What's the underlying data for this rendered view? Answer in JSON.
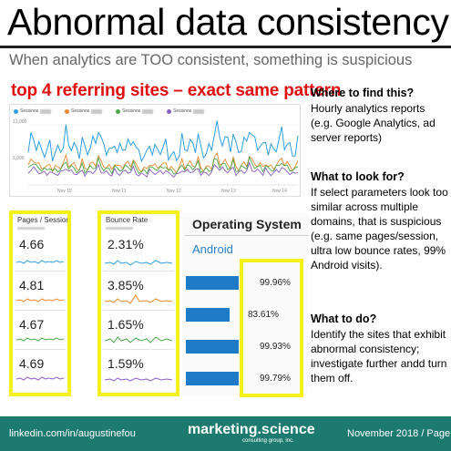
{
  "title": "Abnormal data consistency",
  "subtitle": "When analytics are TOO consistent, something is suspicious",
  "figure_heading": "top 4 referring sites – exact same pattern",
  "chart": {
    "legend": [
      "Sessions",
      "Sessions",
      "Sessions",
      "Sessions"
    ],
    "y_ticks": [
      "12,000",
      "6,000"
    ],
    "x_ticks": [
      "Nov 15",
      "Nov 11",
      "Nov 12",
      "Nov 13",
      "Nov 14"
    ],
    "colors": [
      "#2f9ee0",
      "#e8892c",
      "#4aa84a",
      "#8a5cc0"
    ]
  },
  "chart_data": {
    "type": "line",
    "x": [
      "Nov 15",
      "Nov 11",
      "Nov 12",
      "Nov 13",
      "Nov 14"
    ],
    "series": [
      {
        "name": "Sessions",
        "values": [
          6500,
          7800,
          6200,
          8400,
          7100
        ]
      },
      {
        "name": "Sessions",
        "values": [
          3500,
          3900,
          3400,
          4100,
          3700
        ]
      },
      {
        "name": "Sessions",
        "values": [
          3000,
          3300,
          2900,
          3600,
          3200
        ]
      },
      {
        "name": "Sessions",
        "values": [
          2300,
          2500,
          2200,
          2800,
          2400
        ]
      }
    ],
    "y_ticks": [
      "12,000",
      "6,000"
    ]
  },
  "pages_session": {
    "heading": "Pages / Session",
    "values": [
      "4.66",
      "4.81",
      "4.67",
      "4.69"
    ]
  },
  "bounce_rate": {
    "heading": "Bounce Rate",
    "values": [
      "2.31%",
      "3.85%",
      "1.65%",
      "1.59%"
    ]
  },
  "operating_system": {
    "heading": "Operating System",
    "category": "Android",
    "rows": [
      {
        "pct": "99.96%",
        "fraction": 0.9996
      },
      {
        "pct": "83.61%",
        "fraction": 0.8361
      },
      {
        "pct": "99.93%",
        "fraction": 0.9993
      },
      {
        "pct": "99.79%",
        "fraction": 0.9979
      }
    ]
  },
  "side": {
    "q1": "Where to find this?",
    "a1": "Hourly analytics reports (e.g. Google Analytics, ad server reports)",
    "q2": "What to look for?",
    "a2": "If select parameters look too similar across multiple domains, that is suspicious (e.g. same pages/session, ultra low bounce rates, 99% Android visits).",
    "q3": "What to do?",
    "a3": "Identify the sites that exhibit abnormal consistency; investigate further andd turn them off."
  },
  "footer": {
    "left": "linkedin.com/in/augustinefou",
    "brand": "marketing.science",
    "brand_sub": "consulting group, inc.",
    "right": "November 2018 / Page 0"
  }
}
